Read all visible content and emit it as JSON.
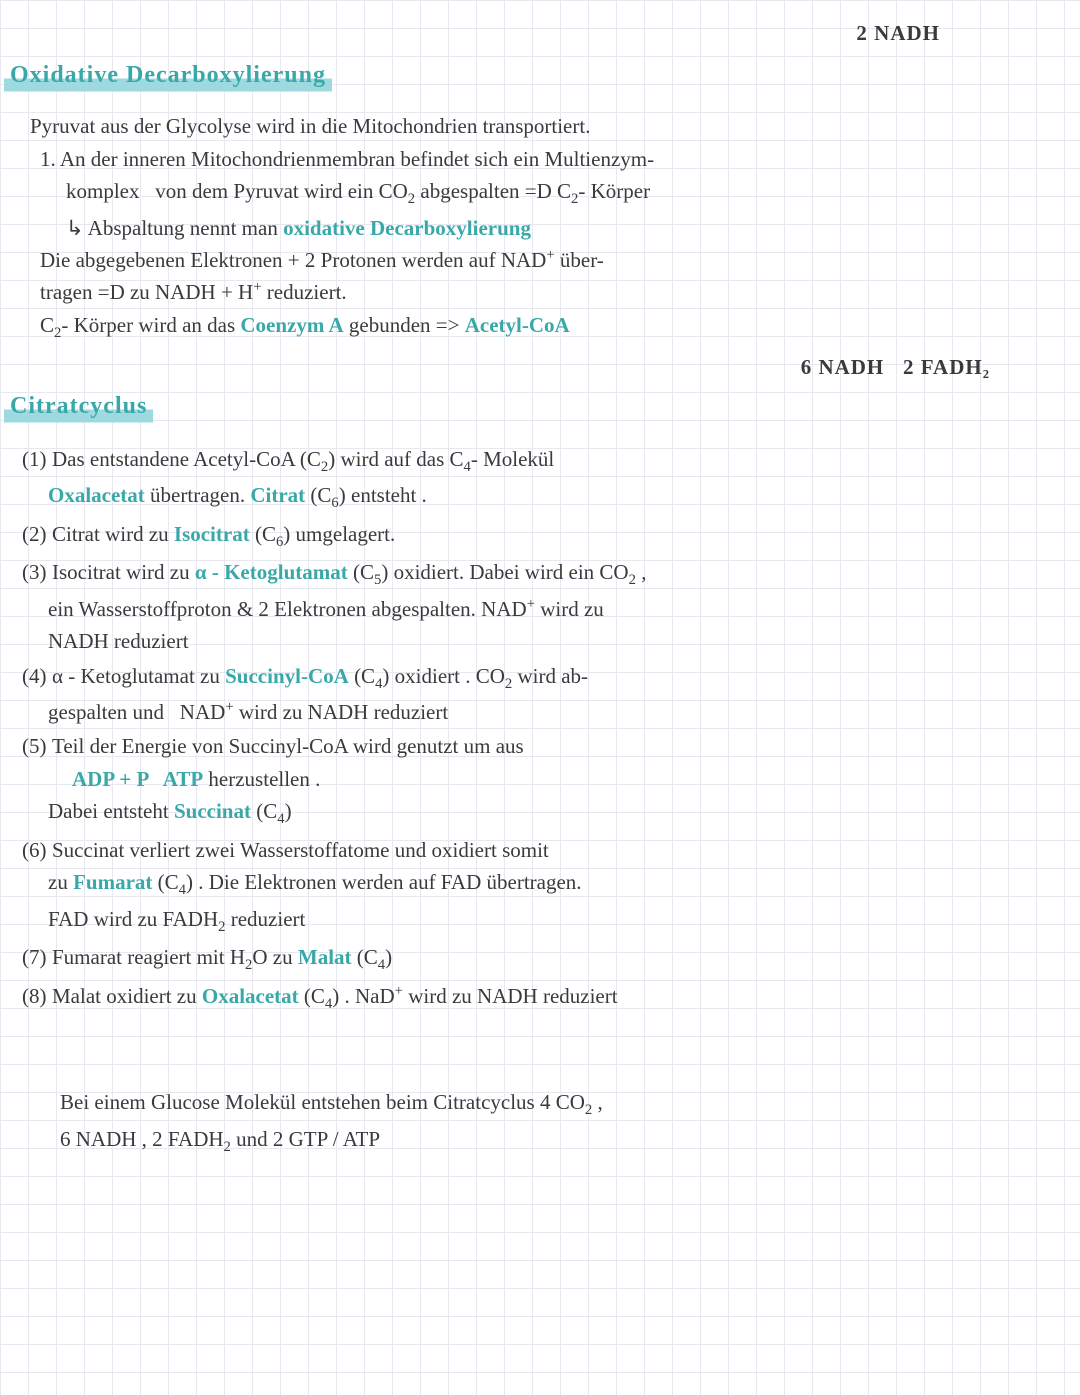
{
  "topNote": "2 NADH",
  "heading1": "Oxidative Decarboxylierung",
  "intro": "Pyruvat aus der Glycolyse wird in die Mitochondrien transportiert.",
  "block1": {
    "l1a": "1. An der inneren Mitochondrienmembran befindet sich ein Multienzym-",
    "l1b_pre": "komplex   von dem Pyruvat wird ein CO",
    "l1b_co2sub": "2",
    "l1b_mid": " abgespalten =D C",
    "l1b_c2sub": "2",
    "l1b_post": "- Körper",
    "l1c_pre": "↳ Abspaltung nennt man ",
    "l1c_teal": "oxidative Decarboxylierung",
    "l2a": "Die abgegebenen Elektronen + 2 Protonen werden auf NAD",
    "l2a_sup": "+",
    "l2a_post": " über-",
    "l2b": "tragen =D zu NADH + H",
    "l2b_sup": "+",
    "l2b_post": " reduziert.",
    "l3_pre": "C",
    "l3_sub": "2",
    "l3_mid": "- Körper wird an das ",
    "l3_teal1": "Coenzym A",
    "l3_mid2": " gebunden => ",
    "l3_teal2": "Acetyl-CoA"
  },
  "midNote": "6 NADH   2 FADH₂",
  "heading2": "Citratcyclus",
  "cycle": {
    "s1": {
      "num": "(1)",
      "a_pre": "Das entstandene Acetyl-CoA (C",
      "a_sub1": "2",
      "a_mid": ") wird auf das C",
      "a_sub2": "4",
      "a_post": "- Molekül",
      "b_teal1": "Oxalacetat",
      "b_mid": " übertragen. ",
      "b_teal2": "Citrat",
      "b_post_pre": " (C",
      "b_sub": "6",
      "b_post": ") entsteht ."
    },
    "s2": {
      "num": "(2)",
      "pre": "Citrat wird zu ",
      "teal": "Isocitrat",
      "post_pre": " (C",
      "sub": "6",
      "post": ") umgelagert."
    },
    "s3": {
      "num": "(3)",
      "a_pre": "Isocitrat wird zu ",
      "a_teal": "α - Ketoglutamat",
      "a_mid_pre": " (C",
      "a_sub": "5",
      "a_mid": ") oxidiert. Dabei wird ein CO",
      "a_sub2": "2",
      "a_post": " ,",
      "b": "ein Wasserstoffproton & 2 Elektronen abgespalten. NAD",
      "b_sup": "+",
      "b_post": " wird zu",
      "c": "NADH reduziert"
    },
    "s4": {
      "num": "(4)",
      "a_pre": "α - Ketoglutamat zu ",
      "a_teal": "Succinyl-CoA",
      "a_mid_pre": " (C",
      "a_sub": "4",
      "a_mid": ") oxidiert . CO",
      "a_sub2": "2",
      "a_post": " wird ab-",
      "b": "gespalten und   NAD",
      "b_sup": "+",
      "b_post": " wird zu NADH reduziert"
    },
    "s5": {
      "num": "(5)",
      "a": "Teil der Energie von Succinyl-CoA wird genutzt um aus",
      "b_teal": "ADP + P   ATP",
      "b_post": " herzustellen .",
      "c_pre": "Dabei entsteht ",
      "c_teal": "Succinat",
      "c_post_pre": " (C",
      "c_sub": "4",
      "c_post": ")"
    },
    "s6": {
      "num": "(6)",
      "a": "Succinat verliert zwei Wasserstoffatome und oxidiert somit",
      "b_pre": "zu ",
      "b_teal": "Fumarat",
      "b_mid_pre": " (C",
      "b_sub": "4",
      "b_mid": ") . Die Elektronen werden auf FAD übertragen.",
      "c": "FAD wird zu FADH",
      "c_sub": "2",
      "c_post": " reduziert"
    },
    "s7": {
      "num": "(7)",
      "pre": "Fumarat reagiert mit H",
      "sub1": "2",
      "mid": "O zu ",
      "teal": "Malat",
      "post_pre": " (C",
      "sub2": "4",
      "post": ")"
    },
    "s8": {
      "num": "(8)",
      "pre": "Malat oxidiert zu ",
      "teal": "Oxalacetat",
      "mid_pre": " (C",
      "sub": "4",
      "mid": ") . NaD",
      "sup": "+",
      "post": " wird zu NADH reduziert"
    }
  },
  "summary": {
    "l1_pre": "Bei einem Glucose Molekül entstehen beim Citratcyclus 4 CO",
    "l1_sub": "2",
    "l1_post": " ,",
    "l2_pre": "6 NADH , 2 FADH",
    "l2_sub": "2",
    "l2_post": " und 2 GTP / ATP"
  }
}
